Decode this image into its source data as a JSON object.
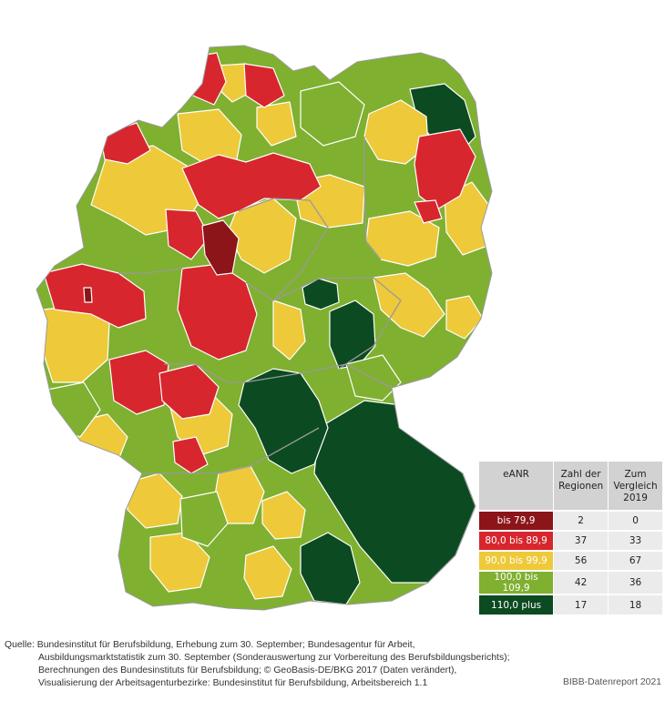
{
  "legend": {
    "header": {
      "category": "eANR",
      "count": [
        "Zahl der",
        "Regionen"
      ],
      "compare": [
        "Zum",
        "Vergleich",
        "2019"
      ]
    },
    "rows": [
      {
        "label": "bis 79,9",
        "count": "2",
        "compare": "0",
        "color": "#8b1518"
      },
      {
        "label": "80,0 bis 89,9",
        "count": "37",
        "compare": "33",
        "color": "#d7262d"
      },
      {
        "label": "90,0 bis 99,9",
        "count": "56",
        "compare": "67",
        "color": "#eec93a"
      },
      {
        "label": "100,0 bis 109,9",
        "count": "42",
        "compare": "36",
        "color": "#7fb030"
      },
      {
        "label": "110,0 plus",
        "count": "17",
        "compare": "18",
        "color": "#0c4a22"
      }
    ]
  },
  "source_lines": [
    "Quelle: Bundesinstitut für Berufsbildung, Erhebung zum 30. September; Bundesagentur für Arbeit,",
    "Ausbildungsmarktstatistik zum 30. September (Sonderauswertung zur Vorbereitung des Berufsbildungsberichts);",
    "Berechnungen des Bundesinstituts für Berufsbildung; © GeoBasis-DE/BKG 2017 (Daten verändert),",
    "Visualisierung der Arbeitsagenturbezirke: Bundesinstitut für Berufsbildung, Arbeitsbereich 1.1"
  ],
  "credit": "BIBB-Datenreport 2021",
  "map_colors": {
    "dark_red": "#8b1518",
    "red": "#d7262d",
    "yellow": "#eec93a",
    "light_green": "#7fb030",
    "dark_green": "#0c4a22",
    "border": "#ffffff",
    "state_border": "#9a9a9a"
  }
}
